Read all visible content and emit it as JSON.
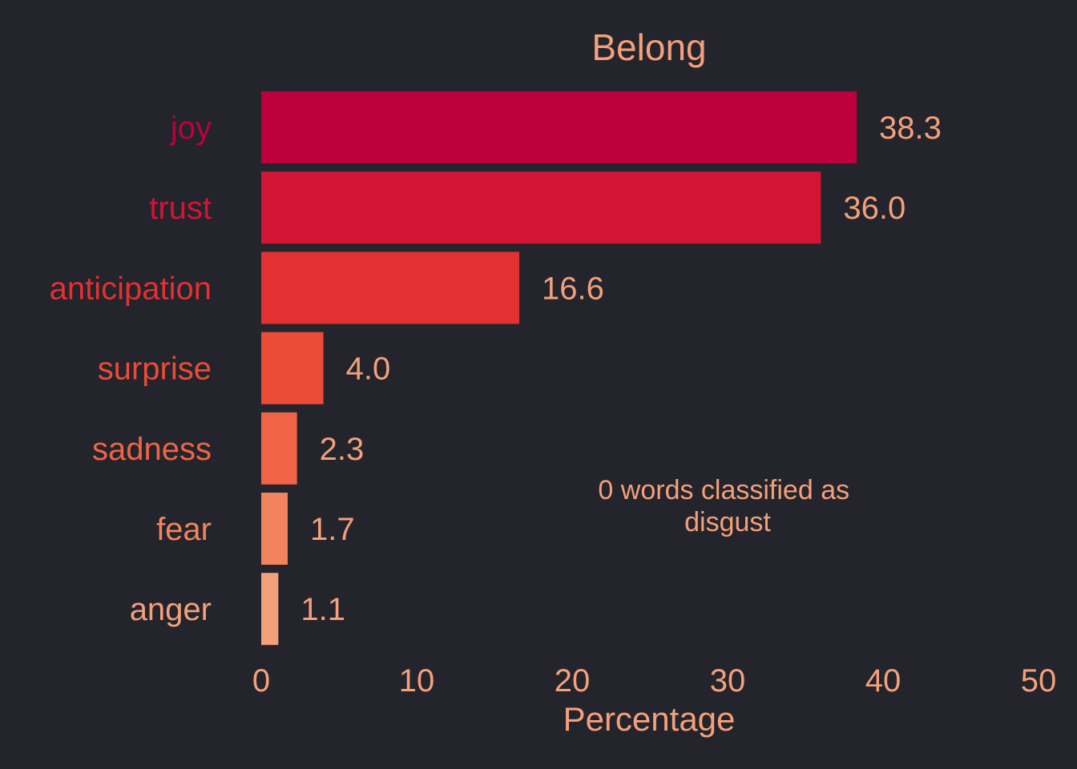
{
  "chart_data": {
    "type": "bar",
    "orientation": "horizontal",
    "title": "Belong",
    "xlabel": "Percentage",
    "ylabel": "",
    "xlim": [
      0,
      50
    ],
    "xticks": [
      "0",
      "10",
      "20",
      "30",
      "40",
      "50"
    ],
    "categories": [
      "joy",
      "trust",
      "anticipation",
      "surprise",
      "sadness",
      "fear",
      "anger"
    ],
    "values": [
      38.3,
      36.0,
      16.6,
      4.0,
      2.3,
      1.7,
      1.1
    ],
    "value_labels": [
      "38.3",
      "36.0",
      "16.6",
      "4.0",
      "2.3",
      "1.7",
      "1.1"
    ],
    "bar_colors": [
      "#bd003b",
      "#d21535",
      "#e33030",
      "#ec4b36",
      "#f06445",
      "#f2845d",
      "#f4a07a"
    ],
    "annotation": [
      "0 words classified as",
      "disgust"
    ],
    "grid": false,
    "legend": "none",
    "text_color": "#f4a07a",
    "background": "#23242c"
  }
}
